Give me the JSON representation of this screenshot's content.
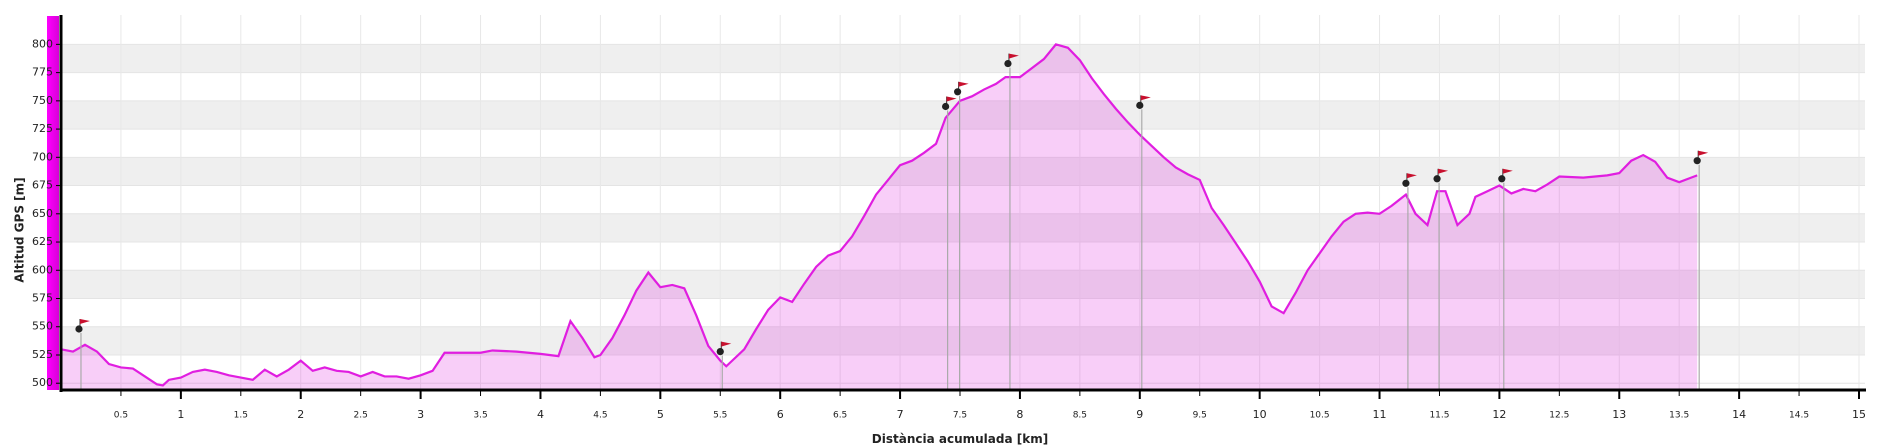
{
  "chart_data": {
    "type": "area",
    "xlabel": "Distància acumulada [km]",
    "ylabel": "Altitud GPS [m]",
    "color": "#e01ee0",
    "x": [
      0,
      0.1,
      0.2,
      0.3,
      0.4,
      0.5,
      0.6,
      0.7,
      0.8,
      0.85,
      0.9,
      1.0,
      1.1,
      1.2,
      1.3,
      1.4,
      1.5,
      1.6,
      1.7,
      1.8,
      1.9,
      2.0,
      2.1,
      2.2,
      2.3,
      2.4,
      2.5,
      2.6,
      2.7,
      2.8,
      2.9,
      3.0,
      3.1,
      3.2,
      3.3,
      3.4,
      3.5,
      3.6,
      3.8,
      4.0,
      4.15,
      4.25,
      4.35,
      4.45,
      4.5,
      4.6,
      4.7,
      4.8,
      4.9,
      5.0,
      5.1,
      5.2,
      5.3,
      5.4,
      5.5,
      5.55,
      5.6,
      5.7,
      5.8,
      5.9,
      6.0,
      6.1,
      6.2,
      6.3,
      6.4,
      6.5,
      6.6,
      6.7,
      6.8,
      6.9,
      7.0,
      7.1,
      7.2,
      7.3,
      7.38,
      7.5,
      7.6,
      7.7,
      7.8,
      7.88,
      8.0,
      8.1,
      8.2,
      8.3,
      8.4,
      8.5,
      8.6,
      8.7,
      8.8,
      8.9,
      9.0,
      9.1,
      9.2,
      9.3,
      9.4,
      9.5,
      9.6,
      9.7,
      9.8,
      9.9,
      10.0,
      10.1,
      10.2,
      10.3,
      10.4,
      10.5,
      10.6,
      10.7,
      10.8,
      10.9,
      11.0,
      11.1,
      11.22,
      11.3,
      11.4,
      11.48,
      11.55,
      11.65,
      11.75,
      11.8,
      11.9,
      12.0,
      12.1,
      12.2,
      12.3,
      12.4,
      12.5,
      12.7,
      12.9,
      13.0,
      13.1,
      13.2,
      13.3,
      13.4,
      13.5,
      13.6,
      13.65
    ],
    "values": [
      530,
      528,
      534,
      528,
      517,
      514,
      513,
      506,
      499,
      498,
      503,
      505,
      510,
      512,
      510,
      507,
      505,
      503,
      512,
      506,
      512,
      520,
      511,
      514,
      511,
      510,
      506,
      510,
      506,
      506,
      504,
      507,
      511,
      527,
      527,
      527,
      527,
      529,
      528,
      526,
      524,
      555,
      540,
      523,
      525,
      540,
      560,
      582,
      598,
      585,
      587,
      584,
      560,
      533,
      520,
      515,
      520,
      530,
      548,
      565,
      576,
      572,
      588,
      603,
      613,
      617,
      630,
      648,
      667,
      680,
      693,
      697,
      704,
      712,
      735,
      750,
      754,
      760,
      765,
      771,
      771,
      779,
      787,
      800,
      797,
      786,
      770,
      756,
      743,
      731,
      720,
      710,
      700,
      691,
      685,
      680,
      655,
      640,
      624,
      608,
      590,
      568,
      562,
      580,
      600,
      615,
      630,
      643,
      650,
      651,
      650,
      657,
      667,
      650,
      640,
      670,
      670,
      640,
      650,
      665,
      670,
      675,
      668,
      672,
      670,
      676,
      683,
      682,
      684,
      686,
      697,
      702,
      696,
      682,
      678,
      682,
      684
    ],
    "waypoints": {
      "x": [
        0.15,
        5.5,
        7.38,
        7.48,
        7.9,
        9.0,
        11.22,
        11.48,
        12.02,
        13.65
      ],
      "values": [
        548,
        528,
        745,
        758,
        783,
        746,
        677,
        681,
        681,
        697
      ]
    },
    "xlim": [
      0,
      15
    ],
    "ylim": [
      494,
      826
    ],
    "xticks": [
      0.5,
      1,
      1.5,
      2,
      2.5,
      3,
      3.5,
      4,
      4.5,
      5,
      5.5,
      6,
      6.5,
      7,
      7.5,
      8,
      8.5,
      9,
      9.5,
      10,
      10.5,
      11,
      11.5,
      12,
      12.5,
      13,
      13.5,
      14,
      14.5,
      15
    ],
    "yticks": [
      500,
      525,
      550,
      575,
      600,
      625,
      650,
      675,
      700,
      725,
      750,
      775,
      800
    ],
    "grid": true
  }
}
